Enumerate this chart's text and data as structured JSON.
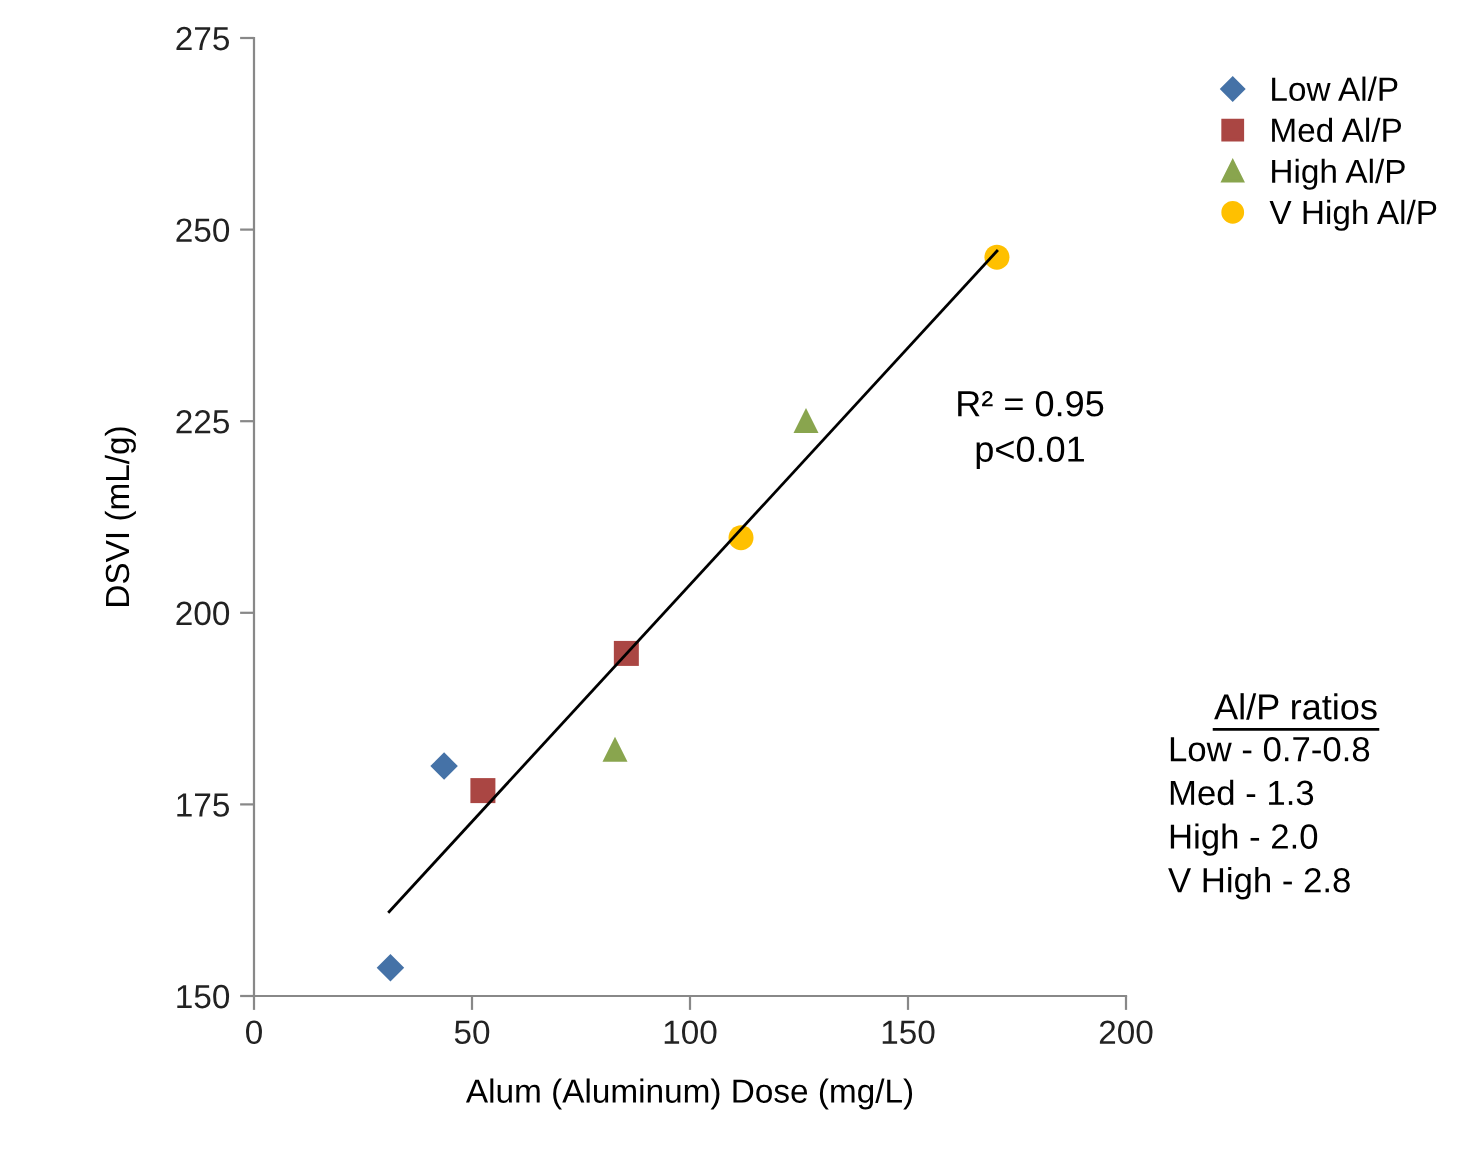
{
  "chart_data": {
    "type": "scatter",
    "xlabel": "Alum (Aluminum) Dose (mg/L)",
    "ylabel": "DSVI (mL/g)",
    "xlim": [
      0,
      200
    ],
    "xticks": [
      0,
      50,
      100,
      150,
      200
    ],
    "ylim": [
      150,
      275
    ],
    "yticks": [
      150,
      175,
      200,
      225,
      250,
      275
    ],
    "grid": false,
    "legend": "top right",
    "series": [
      {
        "name": "Low Al/P",
        "color": "#4572a7",
        "marker": "diamond",
        "x": [
          31.3,
          43.6
        ],
        "values": [
          153.7,
          180.0
        ]
      },
      {
        "name": "Med Al/P",
        "color": "#aa4643",
        "marker": "square",
        "x": [
          52.5,
          85.4
        ],
        "values": [
          176.8,
          194.7
        ]
      },
      {
        "name": "High Al/P",
        "color": "#89a54e",
        "marker": "triangle",
        "x": [
          82.8,
          126.6
        ],
        "values": [
          182.2,
          225.1
        ]
      },
      {
        "name": "V High Al/P",
        "color": "#ffc000",
        "marker": "circle",
        "x": [
          111.7,
          170.4
        ],
        "values": [
          209.8,
          246.4
        ]
      },
      {
        "type": "line",
        "color": "#000000",
        "marker": "none",
        "x": [
          31.0,
          170.4
        ],
        "values": [
          161.0,
          247.2
        ]
      }
    ],
    "annotations": [
      "R² = 0.95\np<0.01",
      "Al/P ratios",
      "Low - 0.7-0.8\nMed - 1.3\nHigh - 2.0\nV High - 2.8"
    ]
  }
}
